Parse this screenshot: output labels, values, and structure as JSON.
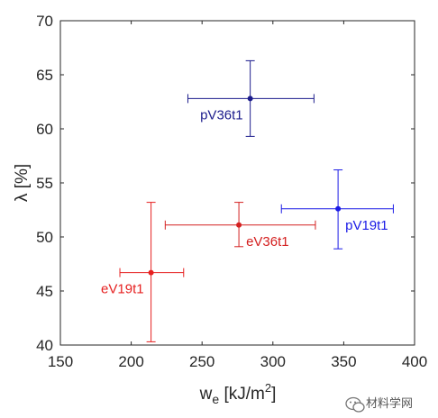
{
  "chart_data": {
    "type": "scatter",
    "xlabel": {
      "base": "w",
      "sub": "e",
      "unit_pre": " [kJ/m",
      "unit_sup": "2",
      "unit_post": "]"
    },
    "ylabel": "λ [%]",
    "xlim": [
      150,
      400
    ],
    "ylim": [
      40,
      70
    ],
    "xticks": [
      "150",
      "200",
      "250",
      "300",
      "350",
      "400"
    ],
    "yticks": [
      "40",
      "45",
      "50",
      "55",
      "60",
      "65",
      "70"
    ],
    "grid": false,
    "points": [
      {
        "label": "pV36t1",
        "x": 284,
        "y": 62.8,
        "x_err": [
          240,
          329
        ],
        "y_err": [
          59.3,
          66.3
        ],
        "color": "#1c1c8c",
        "label_pos": "below-left"
      },
      {
        "label": "pV19t1",
        "x": 346,
        "y": 52.6,
        "x_err": [
          306,
          385
        ],
        "y_err": [
          48.9,
          56.2
        ],
        "color": "#1a1ae6",
        "label_pos": "below-right"
      },
      {
        "label": "eV36t1",
        "x": 276,
        "y": 51.1,
        "x_err": [
          224,
          330
        ],
        "y_err": [
          49.1,
          53.2
        ],
        "color": "#d42020",
        "label_pos": "below-right"
      },
      {
        "label": "eV19t1",
        "x": 214,
        "y": 46.7,
        "x_err": [
          192,
          237
        ],
        "y_err": [
          40.3,
          53.2
        ],
        "color": "#e62020",
        "label_pos": "below-left"
      }
    ]
  },
  "watermark": {
    "text": "材料学网",
    "icon": "wechat-icon"
  }
}
